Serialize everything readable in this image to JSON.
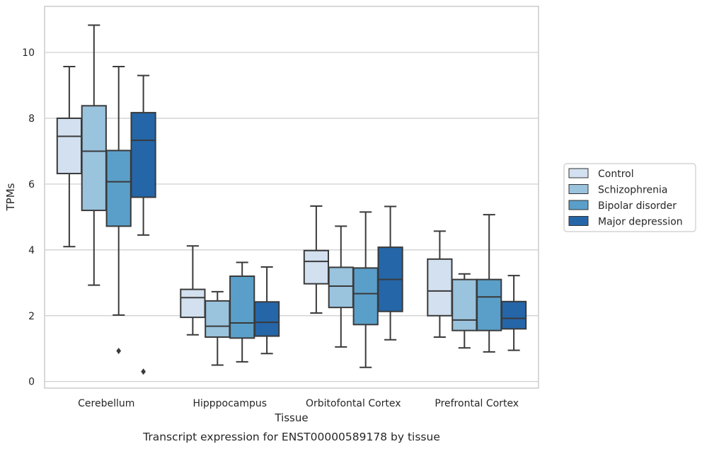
{
  "chart_data": {
    "type": "box",
    "xlabel": "Tissue",
    "ylabel": "TPMs",
    "caption": "Transcript expression for ENST00000589178 by tissue",
    "ylim": [
      -0.2,
      11.4
    ],
    "yticks": [
      0,
      2,
      4,
      6,
      8,
      10
    ],
    "grid": "horizontal",
    "legend_position": "right",
    "categories": [
      "Cerebellum",
      "Hipppocampus",
      "Orbitofontal Cortex",
      "Prefrontal Cortex"
    ],
    "series": [
      {
        "name": "Control",
        "color": "#d2e0ef",
        "boxes": [
          {
            "whisker_low": 4.1,
            "q1": 6.32,
            "median": 7.45,
            "q3": 8.0,
            "whisker_high": 9.57,
            "outliers": []
          },
          {
            "whisker_low": 1.42,
            "q1": 1.95,
            "median": 2.55,
            "q3": 2.8,
            "whisker_high": 4.12,
            "outliers": []
          },
          {
            "whisker_low": 2.08,
            "q1": 2.97,
            "median": 3.65,
            "q3": 3.98,
            "whisker_high": 5.33,
            "outliers": []
          },
          {
            "whisker_low": 1.35,
            "q1": 2.0,
            "median": 2.75,
            "q3": 3.72,
            "whisker_high": 4.57,
            "outliers": []
          }
        ]
      },
      {
        "name": "Schizophrenia",
        "color": "#9ac3dd",
        "boxes": [
          {
            "whisker_low": 2.93,
            "q1": 5.2,
            "median": 7.0,
            "q3": 8.38,
            "whisker_high": 10.83,
            "outliers": []
          },
          {
            "whisker_low": 0.5,
            "q1": 1.35,
            "median": 1.68,
            "q3": 2.45,
            "whisker_high": 2.73,
            "outliers": []
          },
          {
            "whisker_low": 1.05,
            "q1": 2.25,
            "median": 2.9,
            "q3": 3.47,
            "whisker_high": 4.72,
            "outliers": []
          },
          {
            "whisker_low": 1.02,
            "q1": 1.55,
            "median": 1.87,
            "q3": 3.1,
            "whisker_high": 3.27,
            "outliers": []
          }
        ]
      },
      {
        "name": "Bipolar disorder",
        "color": "#5a9fc9",
        "boxes": [
          {
            "whisker_low": 2.02,
            "q1": 4.72,
            "median": 6.07,
            "q3": 7.02,
            "whisker_high": 9.57,
            "outliers": [
              0.93
            ]
          },
          {
            "whisker_low": 0.6,
            "q1": 1.32,
            "median": 1.78,
            "q3": 3.2,
            "whisker_high": 3.62,
            "outliers": []
          },
          {
            "whisker_low": 0.43,
            "q1": 1.73,
            "median": 2.67,
            "q3": 3.45,
            "whisker_high": 5.15,
            "outliers": []
          },
          {
            "whisker_low": 0.9,
            "q1": 1.55,
            "median": 2.57,
            "q3": 3.1,
            "whisker_high": 5.07,
            "outliers": []
          }
        ]
      },
      {
        "name": "Major depression",
        "color": "#2566a9",
        "boxes": [
          {
            "whisker_low": 4.45,
            "q1": 5.6,
            "median": 7.33,
            "q3": 8.17,
            "whisker_high": 9.3,
            "outliers": [
              0.3
            ]
          },
          {
            "whisker_low": 0.85,
            "q1": 1.38,
            "median": 1.8,
            "q3": 2.42,
            "whisker_high": 3.48,
            "outliers": []
          },
          {
            "whisker_low": 1.27,
            "q1": 2.13,
            "median": 3.1,
            "q3": 4.08,
            "whisker_high": 5.32,
            "outliers": []
          },
          {
            "whisker_low": 0.95,
            "q1": 1.6,
            "median": 1.92,
            "q3": 2.43,
            "whisker_high": 3.22,
            "outliers": []
          }
        ]
      }
    ]
  }
}
